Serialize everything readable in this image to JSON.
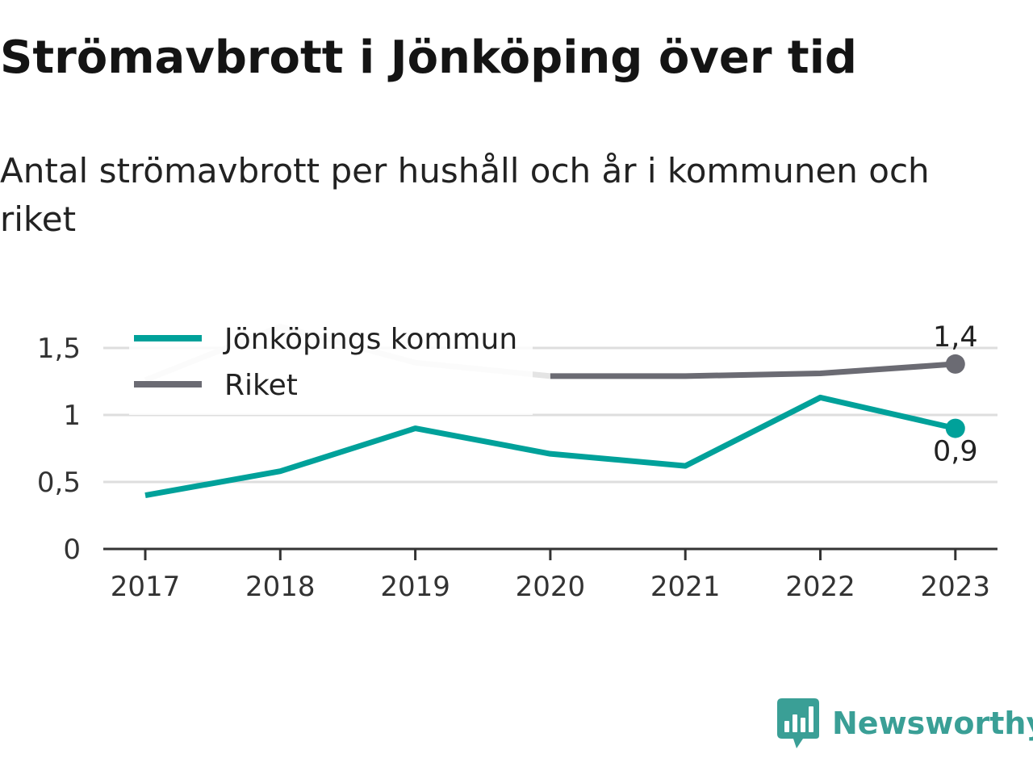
{
  "title": "Strömavbrott i Jönköping över tid",
  "subtitle": "Antal strömavbrott per hushåll och år i kommunen och riket",
  "brand": {
    "name": "Newsworthy"
  },
  "colors": {
    "kommun": "#00a19a",
    "riket": "#6b6b73",
    "riket_faded": "#e4e4e4",
    "grid": "#dedede",
    "axis": "#333333"
  },
  "chart_data": {
    "type": "line",
    "x": [
      "2017",
      "2018",
      "2019",
      "2020",
      "2021",
      "2022",
      "2023"
    ],
    "series": [
      {
        "name": "Jönköpings kommun",
        "color": "#00a19a",
        "values": [
          0.4,
          0.58,
          0.9,
          0.71,
          0.62,
          1.13,
          0.9
        ]
      },
      {
        "name": "Riket",
        "color": "#6b6b73",
        "values": [
          1.26,
          1.66,
          1.39,
          1.29,
          1.29,
          1.31,
          1.38
        ]
      }
    ],
    "ylim": [
      0,
      1.75
    ],
    "yticks": [
      0,
      0.5,
      1,
      1.5
    ],
    "ytick_labels": [
      "0",
      "0,5",
      "1",
      "1,5"
    ],
    "end_labels": [
      "0,9",
      "1,4"
    ],
    "grid": true,
    "legend_position": "top-left"
  }
}
